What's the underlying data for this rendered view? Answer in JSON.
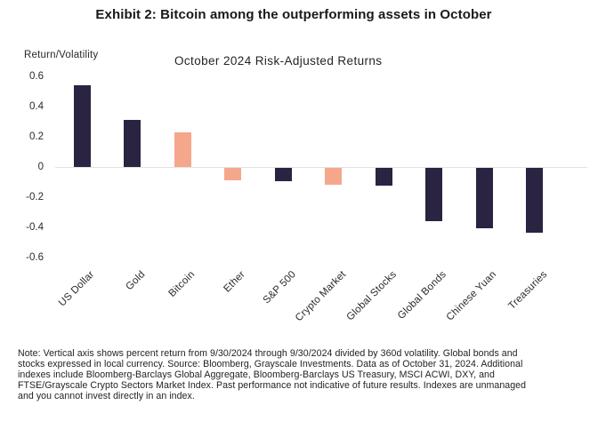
{
  "exhibit_title": "Exhibit 2: Bitcoin among the outperforming assets in October",
  "chart_data": {
    "type": "bar",
    "title": "October 2024 Risk-Adjusted Returns",
    "ylabel": "Return/Volatility",
    "xlabel": "",
    "categories": [
      "US Dollar",
      "Gold",
      "Bitcoin",
      "Ether",
      "S&P 500",
      "Crypto Market",
      "Global Stocks",
      "Global Bonds",
      "Chinese Yuan",
      "Treasuries"
    ],
    "values": [
      0.54,
      0.31,
      0.23,
      -0.08,
      -0.09,
      -0.11,
      -0.12,
      -0.35,
      -0.4,
      -0.43
    ],
    "bar_color_keys": [
      "navy",
      "navy",
      "accent",
      "accent",
      "navy",
      "accent",
      "navy",
      "navy",
      "navy",
      "navy"
    ],
    "colors": {
      "navy": "#2b2342",
      "accent": "#f5a78c",
      "axis_line": "#e3e3e3"
    },
    "ylim": [
      -0.6,
      0.6
    ],
    "yticks": [
      {
        "label": "0.6",
        "value": 0.6
      },
      {
        "label": "0.4",
        "value": 0.4
      },
      {
        "label": "0.2",
        "value": 0.2
      },
      {
        "label": "0",
        "value": 0.0
      },
      {
        "label": "-0.2",
        "value": -0.2
      },
      {
        "label": "-0.4",
        "value": -0.4
      },
      {
        "label": "-0.6",
        "value": -0.6
      }
    ],
    "grid": false,
    "legend": "none"
  },
  "footnote": {
    "text": "Note: Vertical axis shows percent return from 9/30/2024 through 9/30/2024 divided by 360d volatility. Global bonds and\nstocks expressed in local currency. Source: Bloomberg, Grayscale Investments. Data as of October 31, 2024. Additional\nindexes include Bloomberg-Barclays Global Aggregate, Bloomberg-Barclays US Treasury, MSCI ACWI, DXY, and\nFTSE/Grayscale Crypto Sectors Market Index. Past performance not indicative of future results. Indexes are unmanaged\nand you cannot invest directly in an index."
  }
}
